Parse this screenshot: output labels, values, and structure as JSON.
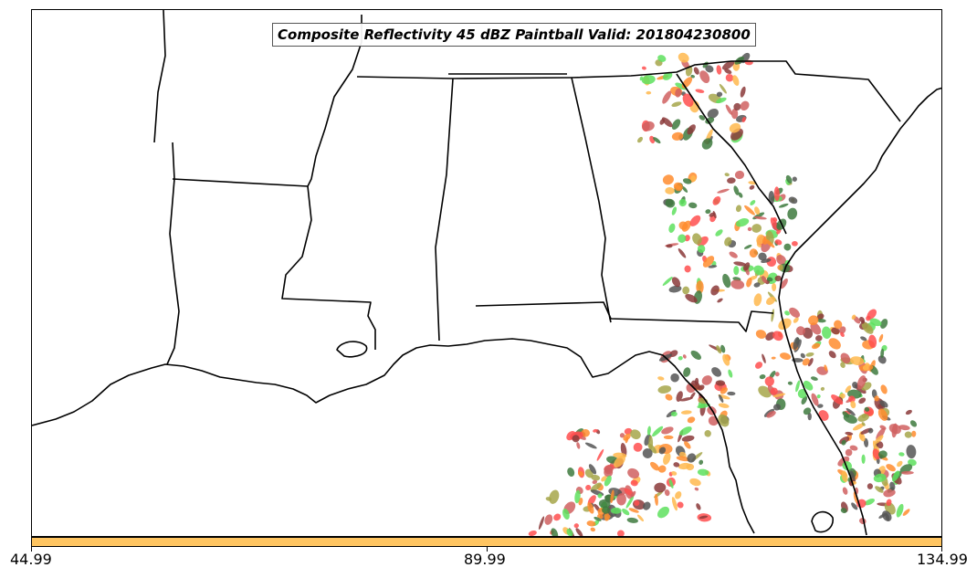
{
  "title": "Composite Reflectivity 45 dBZ Paintball Valid: 201804230800",
  "colorbar": {
    "ticks": [
      "44.99",
      "89.99",
      "134.99"
    ],
    "color": "#ffc561"
  },
  "paintball_palette": [
    "#ff4f4f",
    "#ffb84d",
    "#5ee05e",
    "#8b3a3a",
    "#a6a64a",
    "#3e7a3e",
    "#d06060",
    "#ff8c2e",
    "#555555"
  ]
}
